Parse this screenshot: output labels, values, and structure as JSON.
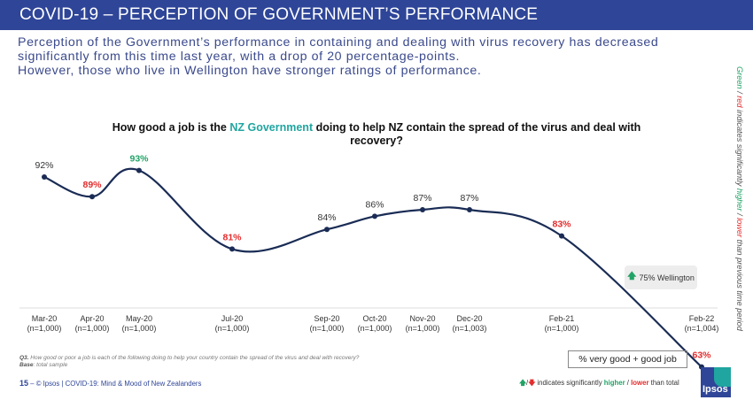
{
  "header": {
    "title": "COVID-19 – PERCEPTION OF GOVERNMENT’S PERFORMANCE"
  },
  "intro": {
    "line1": "Perception of the Government’s performance in containing and dealing with virus recovery has decreased",
    "line2": "significantly from this time last year, with a drop of 20 percentage-points.",
    "line3": "However, those who live in Wellington have stronger ratings of performance."
  },
  "side_note": {
    "green": "Green",
    "sep1": " / ",
    "red": "red",
    "mid": " indicates significantly ",
    "higher": "higher",
    "sep2": " / ",
    "lower": "lower",
    "end": " than previous time period"
  },
  "question": {
    "pre": "How good a job is the ",
    "highlight": "NZ Government",
    "post": " doing to help NZ contain the spread of the virus and deal with recovery?"
  },
  "colors": {
    "brand": "#2e4598",
    "line": "#1a2c55",
    "green": "#21a366",
    "red": "#e32c2c",
    "neutral": "#333333",
    "teal": "#20a5a0"
  },
  "chart_data": {
    "type": "line",
    "title": "How good a job is the NZ Government doing to help NZ contain the spread of the virus and deal with recovery?",
    "xlabel": "",
    "ylabel": "% very good + good job",
    "categories": [
      "Mar-20",
      "Apr-20",
      "May-20",
      "Jul-20",
      "Sep-20",
      "Oct-20",
      "Nov-20",
      "Dec-20",
      "Feb-21",
      "Feb-22"
    ],
    "sample_sizes": [
      "(n=1,000)",
      "(n=1,000)",
      "(n=1,000)",
      "(n=1,000)",
      "(n=1,000)",
      "(n=1,000)",
      "(n=1,000)",
      "(n=1,003)",
      "(n=1,000)",
      "(n=1,004)"
    ],
    "series": [
      {
        "name": "% very good + good job",
        "values": [
          92,
          89,
          93,
          81,
          84,
          86,
          87,
          87,
          83,
          63
        ],
        "labels": [
          "92%",
          "89%",
          "93%",
          "81%",
          "84%",
          "86%",
          "87%",
          "87%",
          "83%",
          "63%"
        ],
        "significance": [
          "none",
          "lower",
          "higher",
          "lower",
          "none",
          "none",
          "none",
          "none",
          "lower",
          "lower"
        ]
      }
    ],
    "annotations": [
      {
        "text": "75% Wellington",
        "indicator": "higher",
        "attached_to": "Feb-22"
      }
    ],
    "grid": false,
    "legend": "bottom-right"
  },
  "wellington": {
    "arrow": "🡅",
    "text": "75% Wellington"
  },
  "footnote": {
    "q_label": "Q3.",
    "q_text": " How good or poor a job is each of the following doing to help your country contain the spread of the virus and deal with recovery?",
    "base_label": "Base",
    "base_text": ": total sample"
  },
  "footer": {
    "page": "15",
    "dash": " – ",
    "text": "© Ipsos | COVID-19: Mind & Mood of New Zealanders"
  },
  "legend": {
    "measure": "% very good + good job",
    "up_arrow": "🡅",
    "slash": "/",
    "down_arrow": "🡇",
    "pre": " indicates significantly ",
    "higher": "higher",
    "sep": " / ",
    "lower": "lower",
    "post": " than total"
  },
  "logo": {
    "text": "Ipsos"
  }
}
